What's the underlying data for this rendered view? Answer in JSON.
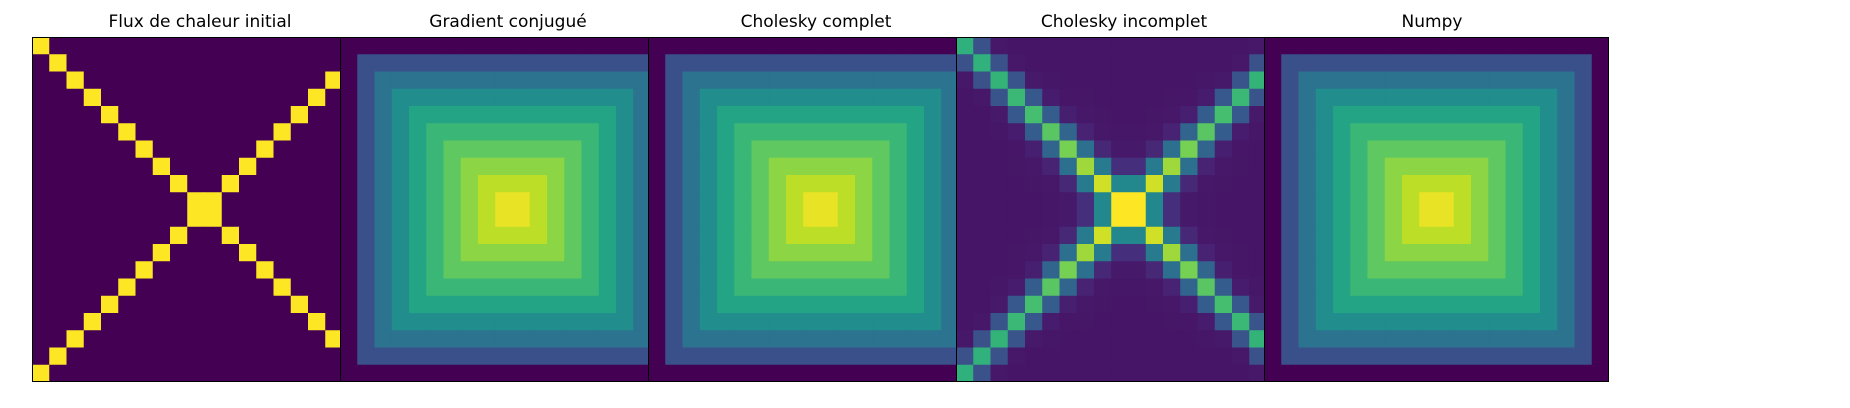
{
  "figure": {
    "panels": [
      {
        "title": "Flux de chaleur initial"
      },
      {
        "title": "Gradient conjugué"
      },
      {
        "title": "Cholesky complet"
      },
      {
        "title": "Cholesky incomplet"
      },
      {
        "title": "Numpy"
      }
    ]
  },
  "chart_data": [
    {
      "type": "heatmap",
      "title": "Flux de chaleur initial",
      "grid": false,
      "rows": 20,
      "cols": 20,
      "colormap": "viridis",
      "pattern": "X diagonals = 1, elsewhere = 0",
      "vmin": 0,
      "vmax": 1
    },
    {
      "type": "heatmap",
      "title": "Gradient conjugué",
      "grid": false,
      "rows": 20,
      "cols": 20,
      "colormap": "viridis",
      "pattern": "smooth peak at center, decaying to edges",
      "vmin": 0,
      "vmax": 1
    },
    {
      "type": "heatmap",
      "title": "Cholesky complet",
      "grid": false,
      "rows": 20,
      "cols": 20,
      "colormap": "viridis",
      "pattern": "smooth peak at center, decaying to edges",
      "vmin": 0,
      "vmax": 1
    },
    {
      "type": "heatmap",
      "title": "Cholesky incomplet",
      "grid": false,
      "rows": 20,
      "cols": 20,
      "colormap": "viridis",
      "pattern": "blurred X diagonals, brightest at center",
      "vmin": 0,
      "vmax": 1
    },
    {
      "type": "heatmap",
      "title": "Numpy",
      "grid": false,
      "rows": 20,
      "cols": 20,
      "colormap": "viridis",
      "pattern": "smooth peak at center, decaying to edges",
      "vmin": 0,
      "vmax": 1
    }
  ]
}
